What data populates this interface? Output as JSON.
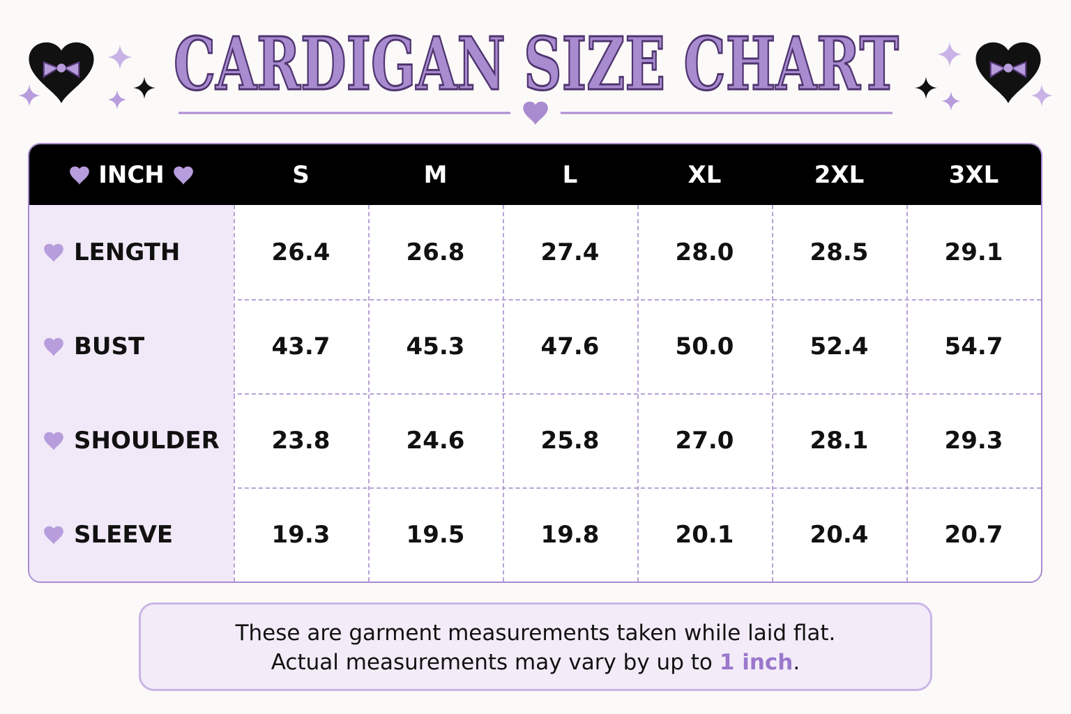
{
  "header": {
    "title": "CARDIGAN SIZE CHART"
  },
  "table": {
    "unit": "INCH",
    "sizes": [
      "S",
      "M",
      "L",
      "XL",
      "2XL",
      "3XL"
    ],
    "rows": [
      {
        "label": "LENGTH",
        "values": [
          "26.4",
          "26.8",
          "27.4",
          "28.0",
          "28.5",
          "29.1"
        ]
      },
      {
        "label": "BUST",
        "values": [
          "43.7",
          "45.3",
          "47.6",
          "50.0",
          "52.4",
          "54.7"
        ]
      },
      {
        "label": "SHOULDER",
        "values": [
          "23.8",
          "24.6",
          "25.8",
          "27.0",
          "28.1",
          "29.3"
        ]
      },
      {
        "label": "SLEEVE",
        "values": [
          "19.3",
          "19.5",
          "19.8",
          "20.1",
          "20.4",
          "20.7"
        ]
      }
    ]
  },
  "note": {
    "line1": "These are garment measurements taken while laid flat.",
    "line2": {
      "text": "Actual measurements may vary by up to",
      "highlight": "1 inch",
      "end": "."
    }
  }
}
